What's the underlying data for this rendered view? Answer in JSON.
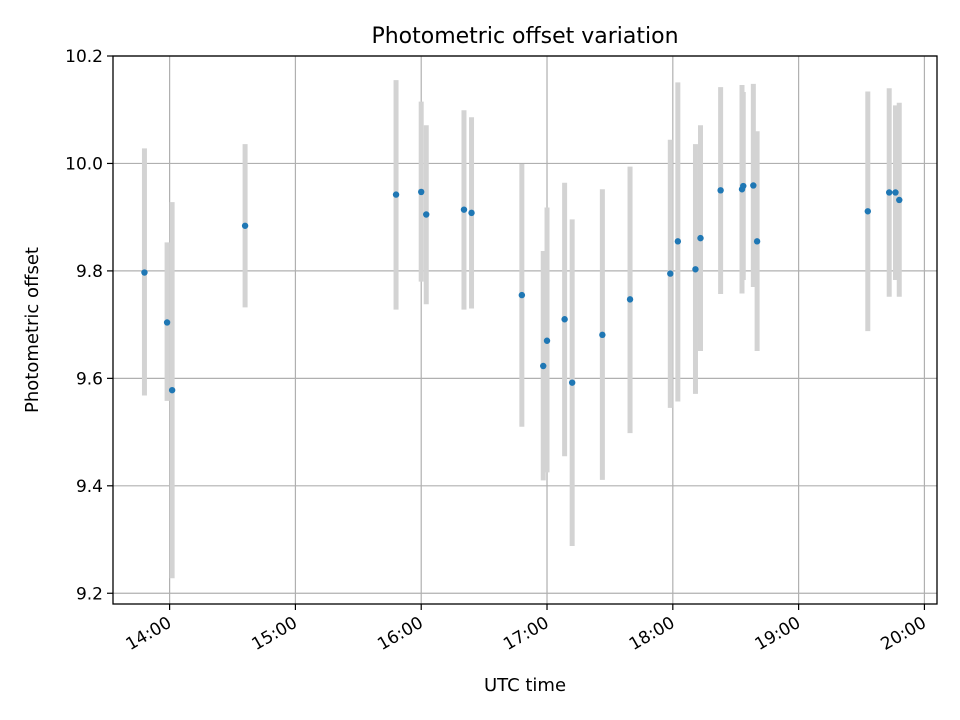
{
  "chart_data": {
    "type": "scatter",
    "title": "Photometric offset variation",
    "xlabel": "UTC time",
    "ylabel": "Photometric offset",
    "x_unit": "hours UTC",
    "xlim": [
      13.55,
      20.1
    ],
    "ylim": [
      9.18,
      10.2
    ],
    "x_ticks": [
      {
        "value": 14,
        "label": "14:00"
      },
      {
        "value": 15,
        "label": "15:00"
      },
      {
        "value": 16,
        "label": "16:00"
      },
      {
        "value": 17,
        "label": "17:00"
      },
      {
        "value": 18,
        "label": "18:00"
      },
      {
        "value": 19,
        "label": "19:00"
      },
      {
        "value": 20,
        "label": "20:00"
      }
    ],
    "y_ticks": [
      {
        "value": 9.2,
        "label": "9.2"
      },
      {
        "value": 9.4,
        "label": "9.4"
      },
      {
        "value": 9.6,
        "label": "9.6"
      },
      {
        "value": 9.8,
        "label": "9.8"
      },
      {
        "value": 10.0,
        "label": "10.0"
      },
      {
        "value": 10.2,
        "label": "10.2"
      }
    ],
    "grid": true,
    "colors": {
      "point": "#1f77b4",
      "errorbar": "#d3d3d3",
      "grid": "#b0b0b0"
    },
    "points": [
      {
        "x": 13.8,
        "y": 9.797,
        "ylo": 9.568,
        "yhi": 10.028
      },
      {
        "x": 13.98,
        "y": 9.704,
        "ylo": 9.558,
        "yhi": 9.853
      },
      {
        "x": 14.02,
        "y": 9.578,
        "ylo": 9.228,
        "yhi": 9.928
      },
      {
        "x": 14.6,
        "y": 9.884,
        "ylo": 9.732,
        "yhi": 10.036
      },
      {
        "x": 15.8,
        "y": 9.942,
        "ylo": 9.728,
        "yhi": 10.155
      },
      {
        "x": 16.0,
        "y": 9.947,
        "ylo": 9.78,
        "yhi": 10.115
      },
      {
        "x": 16.04,
        "y": 9.905,
        "ylo": 9.738,
        "yhi": 10.071
      },
      {
        "x": 16.34,
        "y": 9.914,
        "ylo": 9.728,
        "yhi": 10.099
      },
      {
        "x": 16.4,
        "y": 9.908,
        "ylo": 9.73,
        "yhi": 10.086
      },
      {
        "x": 16.8,
        "y": 9.755,
        "ylo": 9.51,
        "yhi": 9.999
      },
      {
        "x": 16.97,
        "y": 9.623,
        "ylo": 9.41,
        "yhi": 9.837
      },
      {
        "x": 17.0,
        "y": 9.67,
        "ylo": 9.425,
        "yhi": 9.918
      },
      {
        "x": 17.14,
        "y": 9.71,
        "ylo": 9.455,
        "yhi": 9.964
      },
      {
        "x": 17.2,
        "y": 9.592,
        "ylo": 9.288,
        "yhi": 9.896
      },
      {
        "x": 17.44,
        "y": 9.681,
        "ylo": 9.411,
        "yhi": 9.952
      },
      {
        "x": 17.66,
        "y": 9.747,
        "ylo": 9.498,
        "yhi": 9.994
      },
      {
        "x": 17.98,
        "y": 9.795,
        "ylo": 9.545,
        "yhi": 10.044
      },
      {
        "x": 18.04,
        "y": 9.855,
        "ylo": 9.557,
        "yhi": 10.151
      },
      {
        "x": 18.18,
        "y": 9.803,
        "ylo": 9.571,
        "yhi": 10.036
      },
      {
        "x": 18.22,
        "y": 9.861,
        "ylo": 9.651,
        "yhi": 10.071
      },
      {
        "x": 18.38,
        "y": 9.95,
        "ylo": 9.757,
        "yhi": 10.142
      },
      {
        "x": 18.55,
        "y": 9.952,
        "ylo": 9.758,
        "yhi": 10.146
      },
      {
        "x": 18.56,
        "y": 9.958,
        "ylo": 9.783,
        "yhi": 10.133
      },
      {
        "x": 18.64,
        "y": 9.959,
        "ylo": 9.77,
        "yhi": 10.148
      },
      {
        "x": 18.67,
        "y": 9.855,
        "ylo": 9.651,
        "yhi": 10.06
      },
      {
        "x": 19.55,
        "y": 9.911,
        "ylo": 9.688,
        "yhi": 10.134
      },
      {
        "x": 19.72,
        "y": 9.946,
        "ylo": 9.752,
        "yhi": 10.14
      },
      {
        "x": 19.77,
        "y": 9.946,
        "ylo": 9.783,
        "yhi": 10.108
      },
      {
        "x": 19.8,
        "y": 9.932,
        "ylo": 9.752,
        "yhi": 10.113
      }
    ]
  }
}
